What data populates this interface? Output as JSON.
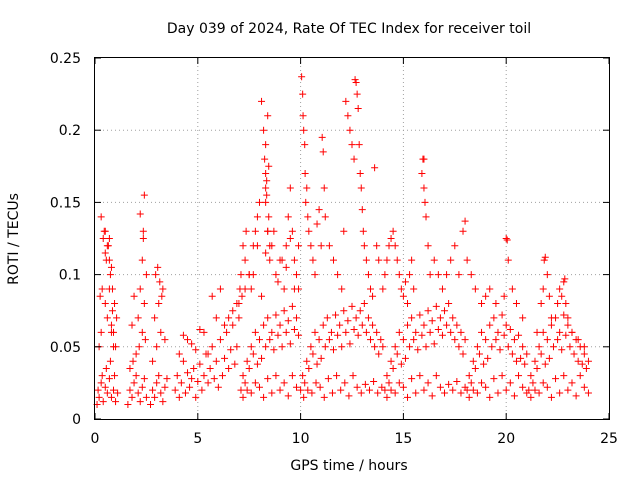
{
  "chart_data": {
    "type": "scatter",
    "title": "Day 039 of 2024, Rate Of TEC Index for receiver toil",
    "xlabel": "GPS time / hours",
    "ylabel": "ROTI / TECUs",
    "xlim": [
      0,
      25
    ],
    "ylim": [
      0,
      0.25
    ],
    "xticks": [
      0,
      5,
      10,
      15,
      20,
      25
    ],
    "xtick_labels": [
      "0",
      "5",
      "10",
      "15",
      "20",
      "25"
    ],
    "yticks": [
      0,
      0.05,
      0.1,
      0.15,
      0.2,
      0.25
    ],
    "ytick_labels": [
      "0",
      "0.05",
      "0.1",
      "0.15",
      "0.2",
      "0.25"
    ],
    "grid": true,
    "marker": "+",
    "series": [
      {
        "name": "ROTI",
        "color": "#ff0000",
        "x": [
          0.1,
          0.15,
          0.2,
          0.3,
          0.35,
          0.4,
          0.5,
          0.55,
          0.6,
          0.7,
          0.75,
          0.8,
          0.9,
          0.95,
          1.0,
          1.1,
          0.2,
          0.3,
          0.5,
          0.6,
          0.7,
          0.8,
          0.9,
          0.55,
          0.65,
          0.75,
          0.85,
          0.95,
          1.05,
          0.4,
          0.5,
          0.6,
          0.7,
          0.8,
          0.3,
          0.45,
          0.5,
          0.7,
          0.9,
          1.0,
          0.25,
          0.35,
          0.8,
          0.85,
          1.6,
          1.7,
          1.8,
          1.9,
          2.0,
          2.1,
          2.2,
          2.3,
          2.4,
          2.5,
          1.7,
          1.85,
          2.0,
          2.15,
          2.3,
          2.45,
          1.8,
          2.1,
          2.4,
          1.9,
          2.2,
          2.3,
          2.35,
          2.4,
          2.5,
          2.2,
          2.35,
          2.7,
          2.8,
          2.9,
          3.0,
          3.1,
          3.2,
          3.3,
          3.4,
          3.5,
          2.8,
          3.0,
          3.2,
          3.4,
          2.9,
          3.1,
          3.3,
          2.95,
          3.05,
          3.15,
          3.25,
          3.9,
          4.0,
          4.1,
          4.2,
          4.3,
          4.4,
          4.5,
          4.6,
          4.7,
          4.8,
          4.9,
          5.0,
          5.1,
          5.2,
          5.3,
          5.4,
          5.5,
          5.6,
          5.7,
          5.8,
          5.9,
          6.0,
          6.1,
          6.2,
          6.3,
          6.4,
          6.5,
          6.6,
          6.7,
          6.8,
          6.9,
          7.0,
          4.1,
          4.5,
          4.9,
          5.3,
          5.7,
          6.1,
          6.5,
          6.9,
          4.3,
          4.7,
          5.1,
          5.5,
          5.9,
          6.3,
          6.7,
          7.1,
          7.2,
          7.3,
          7.4,
          7.5,
          7.6,
          7.7,
          7.8,
          7.9,
          8.0,
          8.1,
          8.2,
          8.3,
          8.4,
          8.5,
          8.6,
          8.7,
          8.8,
          8.9,
          9.0,
          9.1,
          9.2,
          9.3,
          9.4,
          9.5,
          9.6,
          9.7,
          9.8,
          9.9,
          7.2,
          7.4,
          7.6,
          7.8,
          8.0,
          8.2,
          8.4,
          8.6,
          8.8,
          9.0,
          9.2,
          9.4,
          9.6,
          9.8,
          7.3,
          7.7,
          8.1,
          8.5,
          8.9,
          9.3,
          9.7,
          7.5,
          7.9,
          8.3,
          8.7,
          9.1,
          9.5,
          9.9,
          7.0,
          7.05,
          7.1,
          7.15,
          7.2,
          7.3,
          7.35,
          7.5,
          7.6,
          7.7,
          7.8,
          7.9,
          8.0,
          8.1,
          8.2,
          8.25,
          8.3,
          8.3,
          8.35,
          8.4,
          8.45,
          8.5,
          8.3,
          8.35,
          8.4,
          8.45,
          8.3,
          8.4,
          8.6,
          8.8,
          9.0,
          9.2,
          9.3,
          9.4,
          9.5,
          9.6,
          9.7,
          9.8,
          9.9,
          10.0,
          10.1,
          10.2,
          10.3,
          10.4,
          10.5,
          10.6,
          10.7,
          10.8,
          10.9,
          11.0,
          11.1,
          11.2,
          11.3,
          11.4,
          11.5,
          11.6,
          11.7,
          11.8,
          11.9,
          12.0,
          12.1,
          12.2,
          12.3,
          12.4,
          12.5,
          12.6,
          12.7,
          12.8,
          12.9,
          13.0,
          13.1,
          13.2,
          13.3,
          13.4,
          13.5,
          13.6,
          13.7,
          13.8,
          13.9,
          14.0,
          10.15,
          10.35,
          10.55,
          10.75,
          10.95,
          11.15,
          11.35,
          11.55,
          11.75,
          11.95,
          12.15,
          12.35,
          12.55,
          12.75,
          12.95,
          13.15,
          13.35,
          13.55,
          13.75,
          13.95,
          10.05,
          10.1,
          10.12,
          10.15,
          10.2,
          10.22,
          10.25,
          10.3,
          10.35,
          10.4,
          10.5,
          10.6,
          10.7,
          10.8,
          10.9,
          11.0,
          11.05,
          11.1,
          11.15,
          11.2,
          11.4,
          11.6,
          11.8,
          12.0,
          12.1,
          12.2,
          12.3,
          12.4,
          12.5,
          12.6,
          12.65,
          12.7,
          12.75,
          12.8,
          12.85,
          12.9,
          12.95,
          13.0,
          13.05,
          13.1,
          13.2,
          13.3,
          13.4,
          13.5,
          13.6,
          13.7,
          13.8,
          14.1,
          14.2,
          14.3,
          14.4,
          14.5,
          14.6,
          14.7,
          14.8,
          14.9,
          15.0,
          15.1,
          15.2,
          15.3,
          15.4,
          15.5,
          15.6,
          15.7,
          15.8,
          15.9,
          16.0,
          16.1,
          16.2,
          16.3,
          16.4,
          16.5,
          16.6,
          16.7,
          16.8,
          16.9,
          17.0,
          17.1,
          17.2,
          17.3,
          17.4,
          17.5,
          17.6,
          17.7,
          17.8,
          17.9,
          18.0,
          14.2,
          14.4,
          14.6,
          14.8,
          15.0,
          15.2,
          15.4,
          15.6,
          15.8,
          16.0,
          16.2,
          16.4,
          16.6,
          16.8,
          17.0,
          17.2,
          17.4,
          17.6,
          17.8,
          18.0,
          14.0,
          14.1,
          14.2,
          14.3,
          14.4,
          14.5,
          14.6,
          14.7,
          14.8,
          14.9,
          15.0,
          15.1,
          15.2,
          15.3,
          15.4,
          15.5,
          15.9,
          15.95,
          16.0,
          16.0,
          16.05,
          16.1,
          16.2,
          16.3,
          16.5,
          16.7,
          16.9,
          17.1,
          17.3,
          17.5,
          17.7,
          17.9,
          18.1,
          18.2,
          18.3,
          18.4,
          18.5,
          18.6,
          18.7,
          18.8,
          18.9,
          19.0,
          19.1,
          19.2,
          19.3,
          19.4,
          19.5,
          19.6,
          19.7,
          19.8,
          19.9,
          20.0,
          20.1,
          20.2,
          20.3,
          20.4,
          20.5,
          20.6,
          20.7,
          20.8,
          20.9,
          21.0,
          18.2,
          18.4,
          18.6,
          18.8,
          19.0,
          19.2,
          19.4,
          19.6,
          19.8,
          20.0,
          20.2,
          20.4,
          20.6,
          20.8,
          21.0,
          18.0,
          18.1,
          18.3,
          18.5,
          18.8,
          19.0,
          19.2,
          19.5,
          19.9,
          20.0,
          20.05,
          20.1,
          20.3,
          20.5,
          20.8,
          21.1,
          21.2,
          21.3,
          21.4,
          21.5,
          21.6,
          21.7,
          21.8,
          21.9,
          22.0,
          22.1,
          22.2,
          22.3,
          22.4,
          22.5,
          22.6,
          22.7,
          22.8,
          22.9,
          23.0,
          23.1,
          23.2,
          23.3,
          23.4,
          23.5,
          23.6,
          23.7,
          23.8,
          23.9,
          24.0,
          21.2,
          21.4,
          21.6,
          21.8,
          22.0,
          22.2,
          22.4,
          22.6,
          22.8,
          23.0,
          23.2,
          23.4,
          23.6,
          23.8,
          24.0,
          21.5,
          21.7,
          21.8,
          21.85,
          21.9,
          22.0,
          22.1,
          22.2,
          22.5,
          22.6,
          22.7,
          22.8,
          22.85,
          22.9,
          23.0,
          23.2,
          23.5,
          23.8
        ],
        "y": [
          0.01,
          0.02,
          0.015,
          0.025,
          0.03,
          0.012,
          0.022,
          0.035,
          0.018,
          0.028,
          0.04,
          0.015,
          0.02,
          0.03,
          0.012,
          0.018,
          0.05,
          0.06,
          0.08,
          0.07,
          0.09,
          0.06,
          0.05,
          0.11,
          0.12,
          0.1,
          0.09,
          0.08,
          0.07,
          0.125,
          0.13,
          0.12,
          0.11,
          0.105,
          0.14,
          0.13,
          0.115,
          0.125,
          0.06,
          0.05,
          0.085,
          0.09,
          0.065,
          0.075,
          0.01,
          0.02,
          0.015,
          0.025,
          0.03,
          0.018,
          0.012,
          0.022,
          0.028,
          0.015,
          0.035,
          0.04,
          0.045,
          0.05,
          0.06,
          0.055,
          0.065,
          0.07,
          0.08,
          0.085,
          0.09,
          0.11,
          0.125,
          0.155,
          0.1,
          0.142,
          0.13,
          0.01,
          0.02,
          0.015,
          0.025,
          0.03,
          0.018,
          0.012,
          0.022,
          0.028,
          0.04,
          0.05,
          0.06,
          0.055,
          0.07,
          0.08,
          0.09,
          0.1,
          0.105,
          0.095,
          0.085,
          0.02,
          0.03,
          0.015,
          0.025,
          0.04,
          0.018,
          0.032,
          0.022,
          0.028,
          0.035,
          0.015,
          0.026,
          0.038,
          0.02,
          0.03,
          0.045,
          0.025,
          0.035,
          0.05,
          0.028,
          0.04,
          0.022,
          0.055,
          0.03,
          0.042,
          0.06,
          0.035,
          0.048,
          0.065,
          0.038,
          0.05,
          0.07,
          0.045,
          0.055,
          0.048,
          0.06,
          0.085,
          0.09,
          0.07,
          0.08,
          0.058,
          0.052,
          0.062,
          0.045,
          0.07,
          0.065,
          0.075,
          0.02,
          0.03,
          0.025,
          0.04,
          0.035,
          0.05,
          0.045,
          0.06,
          0.038,
          0.055,
          0.042,
          0.065,
          0.05,
          0.07,
          0.055,
          0.06,
          0.048,
          0.072,
          0.058,
          0.065,
          0.05,
          0.075,
          0.06,
          0.068,
          0.052,
          0.078,
          0.062,
          0.07,
          0.058,
          0.015,
          0.02,
          0.018,
          0.025,
          0.022,
          0.015,
          0.028,
          0.018,
          0.03,
          0.02,
          0.025,
          0.016,
          0.03,
          0.022,
          0.09,
          0.1,
          0.085,
          0.11,
          0.095,
          0.105,
          0.09,
          0.1,
          0.12,
          0.115,
          0.13,
          0.11,
          0.125,
          0.12,
          0.08,
          0.09,
          0.1,
          0.085,
          0.12,
          0.11,
          0.13,
          0.1,
          0.09,
          0.12,
          0.13,
          0.14,
          0.15,
          0.22,
          0.2,
          0.18,
          0.16,
          0.17,
          0.155,
          0.13,
          0.14,
          0.12,
          0.19,
          0.165,
          0.21,
          0.175,
          0.15,
          0.13,
          0.12,
          0.1,
          0.11,
          0.09,
          0.12,
          0.14,
          0.16,
          0.13,
          0.11,
          0.1,
          0.09,
          0.02,
          0.03,
          0.025,
          0.04,
          0.035,
          0.05,
          0.045,
          0.06,
          0.038,
          0.055,
          0.042,
          0.065,
          0.05,
          0.07,
          0.055,
          0.06,
          0.048,
          0.072,
          0.058,
          0.065,
          0.05,
          0.075,
          0.06,
          0.068,
          0.052,
          0.078,
          0.062,
          0.07,
          0.058,
          0.075,
          0.065,
          0.08,
          0.06,
          0.07,
          0.055,
          0.065,
          0.05,
          0.06,
          0.045,
          0.055,
          0.05,
          0.015,
          0.02,
          0.018,
          0.025,
          0.022,
          0.015,
          0.028,
          0.018,
          0.03,
          0.02,
          0.025,
          0.016,
          0.03,
          0.022,
          0.018,
          0.024,
          0.02,
          0.026,
          0.018,
          0.022,
          0.237,
          0.225,
          0.21,
          0.2,
          0.19,
          0.17,
          0.15,
          0.16,
          0.14,
          0.13,
          0.12,
          0.11,
          0.1,
          0.135,
          0.145,
          0.12,
          0.195,
          0.185,
          0.16,
          0.14,
          0.12,
          0.11,
          0.1,
          0.09,
          0.13,
          0.22,
          0.21,
          0.2,
          0.19,
          0.18,
          0.235,
          0.233,
          0.225,
          0.215,
          0.19,
          0.17,
          0.16,
          0.145,
          0.13,
          0.12,
          0.11,
          0.1,
          0.09,
          0.085,
          0.174,
          0.12,
          0.11,
          0.02,
          0.03,
          0.025,
          0.04,
          0.035,
          0.05,
          0.045,
          0.06,
          0.038,
          0.055,
          0.042,
          0.065,
          0.05,
          0.07,
          0.055,
          0.06,
          0.048,
          0.072,
          0.058,
          0.065,
          0.05,
          0.075,
          0.06,
          0.068,
          0.052,
          0.078,
          0.062,
          0.07,
          0.058,
          0.075,
          0.065,
          0.08,
          0.06,
          0.07,
          0.055,
          0.065,
          0.05,
          0.06,
          0.045,
          0.055,
          0.015,
          0.02,
          0.018,
          0.025,
          0.022,
          0.015,
          0.028,
          0.018,
          0.03,
          0.02,
          0.025,
          0.016,
          0.03,
          0.022,
          0.018,
          0.024,
          0.02,
          0.026,
          0.018,
          0.022,
          0.09,
          0.1,
          0.11,
          0.12,
          0.125,
          0.13,
          0.12,
          0.11,
          0.1,
          0.09,
          0.085,
          0.095,
          0.08,
          0.1,
          0.11,
          0.09,
          0.17,
          0.18,
          0.16,
          0.18,
          0.15,
          0.14,
          0.12,
          0.1,
          0.11,
          0.1,
          0.09,
          0.1,
          0.11,
          0.12,
          0.1,
          0.13,
          0.02,
          0.03,
          0.025,
          0.04,
          0.035,
          0.05,
          0.045,
          0.06,
          0.038,
          0.055,
          0.042,
          0.065,
          0.05,
          0.07,
          0.055,
          0.06,
          0.048,
          0.072,
          0.058,
          0.065,
          0.05,
          0.062,
          0.045,
          0.055,
          0.04,
          0.058,
          0.042,
          0.05,
          0.038,
          0.045,
          0.015,
          0.02,
          0.018,
          0.025,
          0.022,
          0.015,
          0.028,
          0.018,
          0.03,
          0.02,
          0.025,
          0.016,
          0.03,
          0.022,
          0.018,
          0.137,
          0.11,
          0.1,
          0.09,
          0.08,
          0.085,
          0.09,
          0.08,
          0.085,
          0.125,
          0.124,
          0.11,
          0.09,
          0.08,
          0.07,
          0.02,
          0.03,
          0.025,
          0.04,
          0.035,
          0.05,
          0.045,
          0.06,
          0.038,
          0.055,
          0.042,
          0.065,
          0.05,
          0.07,
          0.055,
          0.06,
          0.048,
          0.072,
          0.058,
          0.065,
          0.05,
          0.06,
          0.045,
          0.055,
          0.04,
          0.05,
          0.038,
          0.045,
          0.035,
          0.04,
          0.015,
          0.02,
          0.018,
          0.025,
          0.022,
          0.015,
          0.028,
          0.018,
          0.03,
          0.02,
          0.025,
          0.016,
          0.03,
          0.022,
          0.018,
          0.06,
          0.08,
          0.09,
          0.11,
          0.112,
          0.1,
          0.085,
          0.07,
          0.08,
          0.09,
          0.085,
          0.095,
          0.097,
          0.08,
          0.07,
          0.06,
          0.055,
          0.05
        ]
      }
    ]
  }
}
